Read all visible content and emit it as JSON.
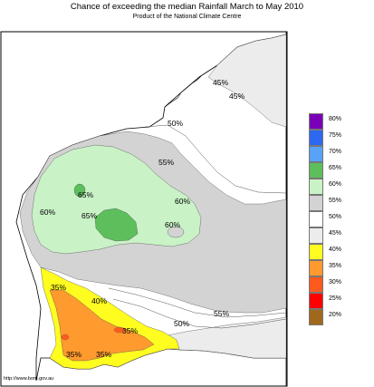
{
  "header": {
    "title": "Chance of exceeding the median Rainfall March to May 2010",
    "subtitle": "Product of the National Climate Centre"
  },
  "footer": {
    "url": "http://www.bom.gov.au"
  },
  "colors": {
    "c80": "#7a00b8",
    "c75": "#2d68f0",
    "c70": "#5aa2f5",
    "c65": "#5cbf5c",
    "c60": "#c9f2c6",
    "c55": "#d3d3d3",
    "c50": "#ffffff",
    "c45": "#ececec",
    "c40": "#fffc20",
    "c35": "#ff9a2e",
    "c30": "#ff5a1e",
    "c25": "#ff0000",
    "c20": "#a0681c",
    "border": "#000000",
    "contour": "#555555"
  },
  "legend": [
    {
      "label": "80%",
      "color": "#7a00b8"
    },
    {
      "label": "75%",
      "color": "#2d68f0"
    },
    {
      "label": "70%",
      "color": "#5aa2f5"
    },
    {
      "label": "65%",
      "color": "#5cbf5c"
    },
    {
      "label": "60%",
      "color": "#c9f2c6"
    },
    {
      "label": "55%",
      "color": "#d3d3d3"
    },
    {
      "label": "50%",
      "color": "#ffffff"
    },
    {
      "label": "45%",
      "color": "#ececec"
    },
    {
      "label": "40%",
      "color": "#fffc20"
    },
    {
      "label": "35%",
      "color": "#ff9a2e"
    },
    {
      "label": "30%",
      "color": "#ff5a1e"
    },
    {
      "label": "25%",
      "color": "#ff0000"
    },
    {
      "label": "20%",
      "color": "#a0681c"
    }
  ],
  "map_labels": {
    "ne_45_a": "45%",
    "ne_45_b": "45%",
    "north_50": "50%",
    "central_55": "55%",
    "green_65_a": "65%",
    "green_65_b": "65%",
    "west_60": "60%",
    "east_60": "60%",
    "inner_60": "60%",
    "sw_35_a": "35%",
    "sw_40": "40%",
    "sw_35_b": "35%",
    "south_50": "50%",
    "se_55": "55%",
    "sw_35_c": "35%",
    "sw_35_d": "35%"
  }
}
